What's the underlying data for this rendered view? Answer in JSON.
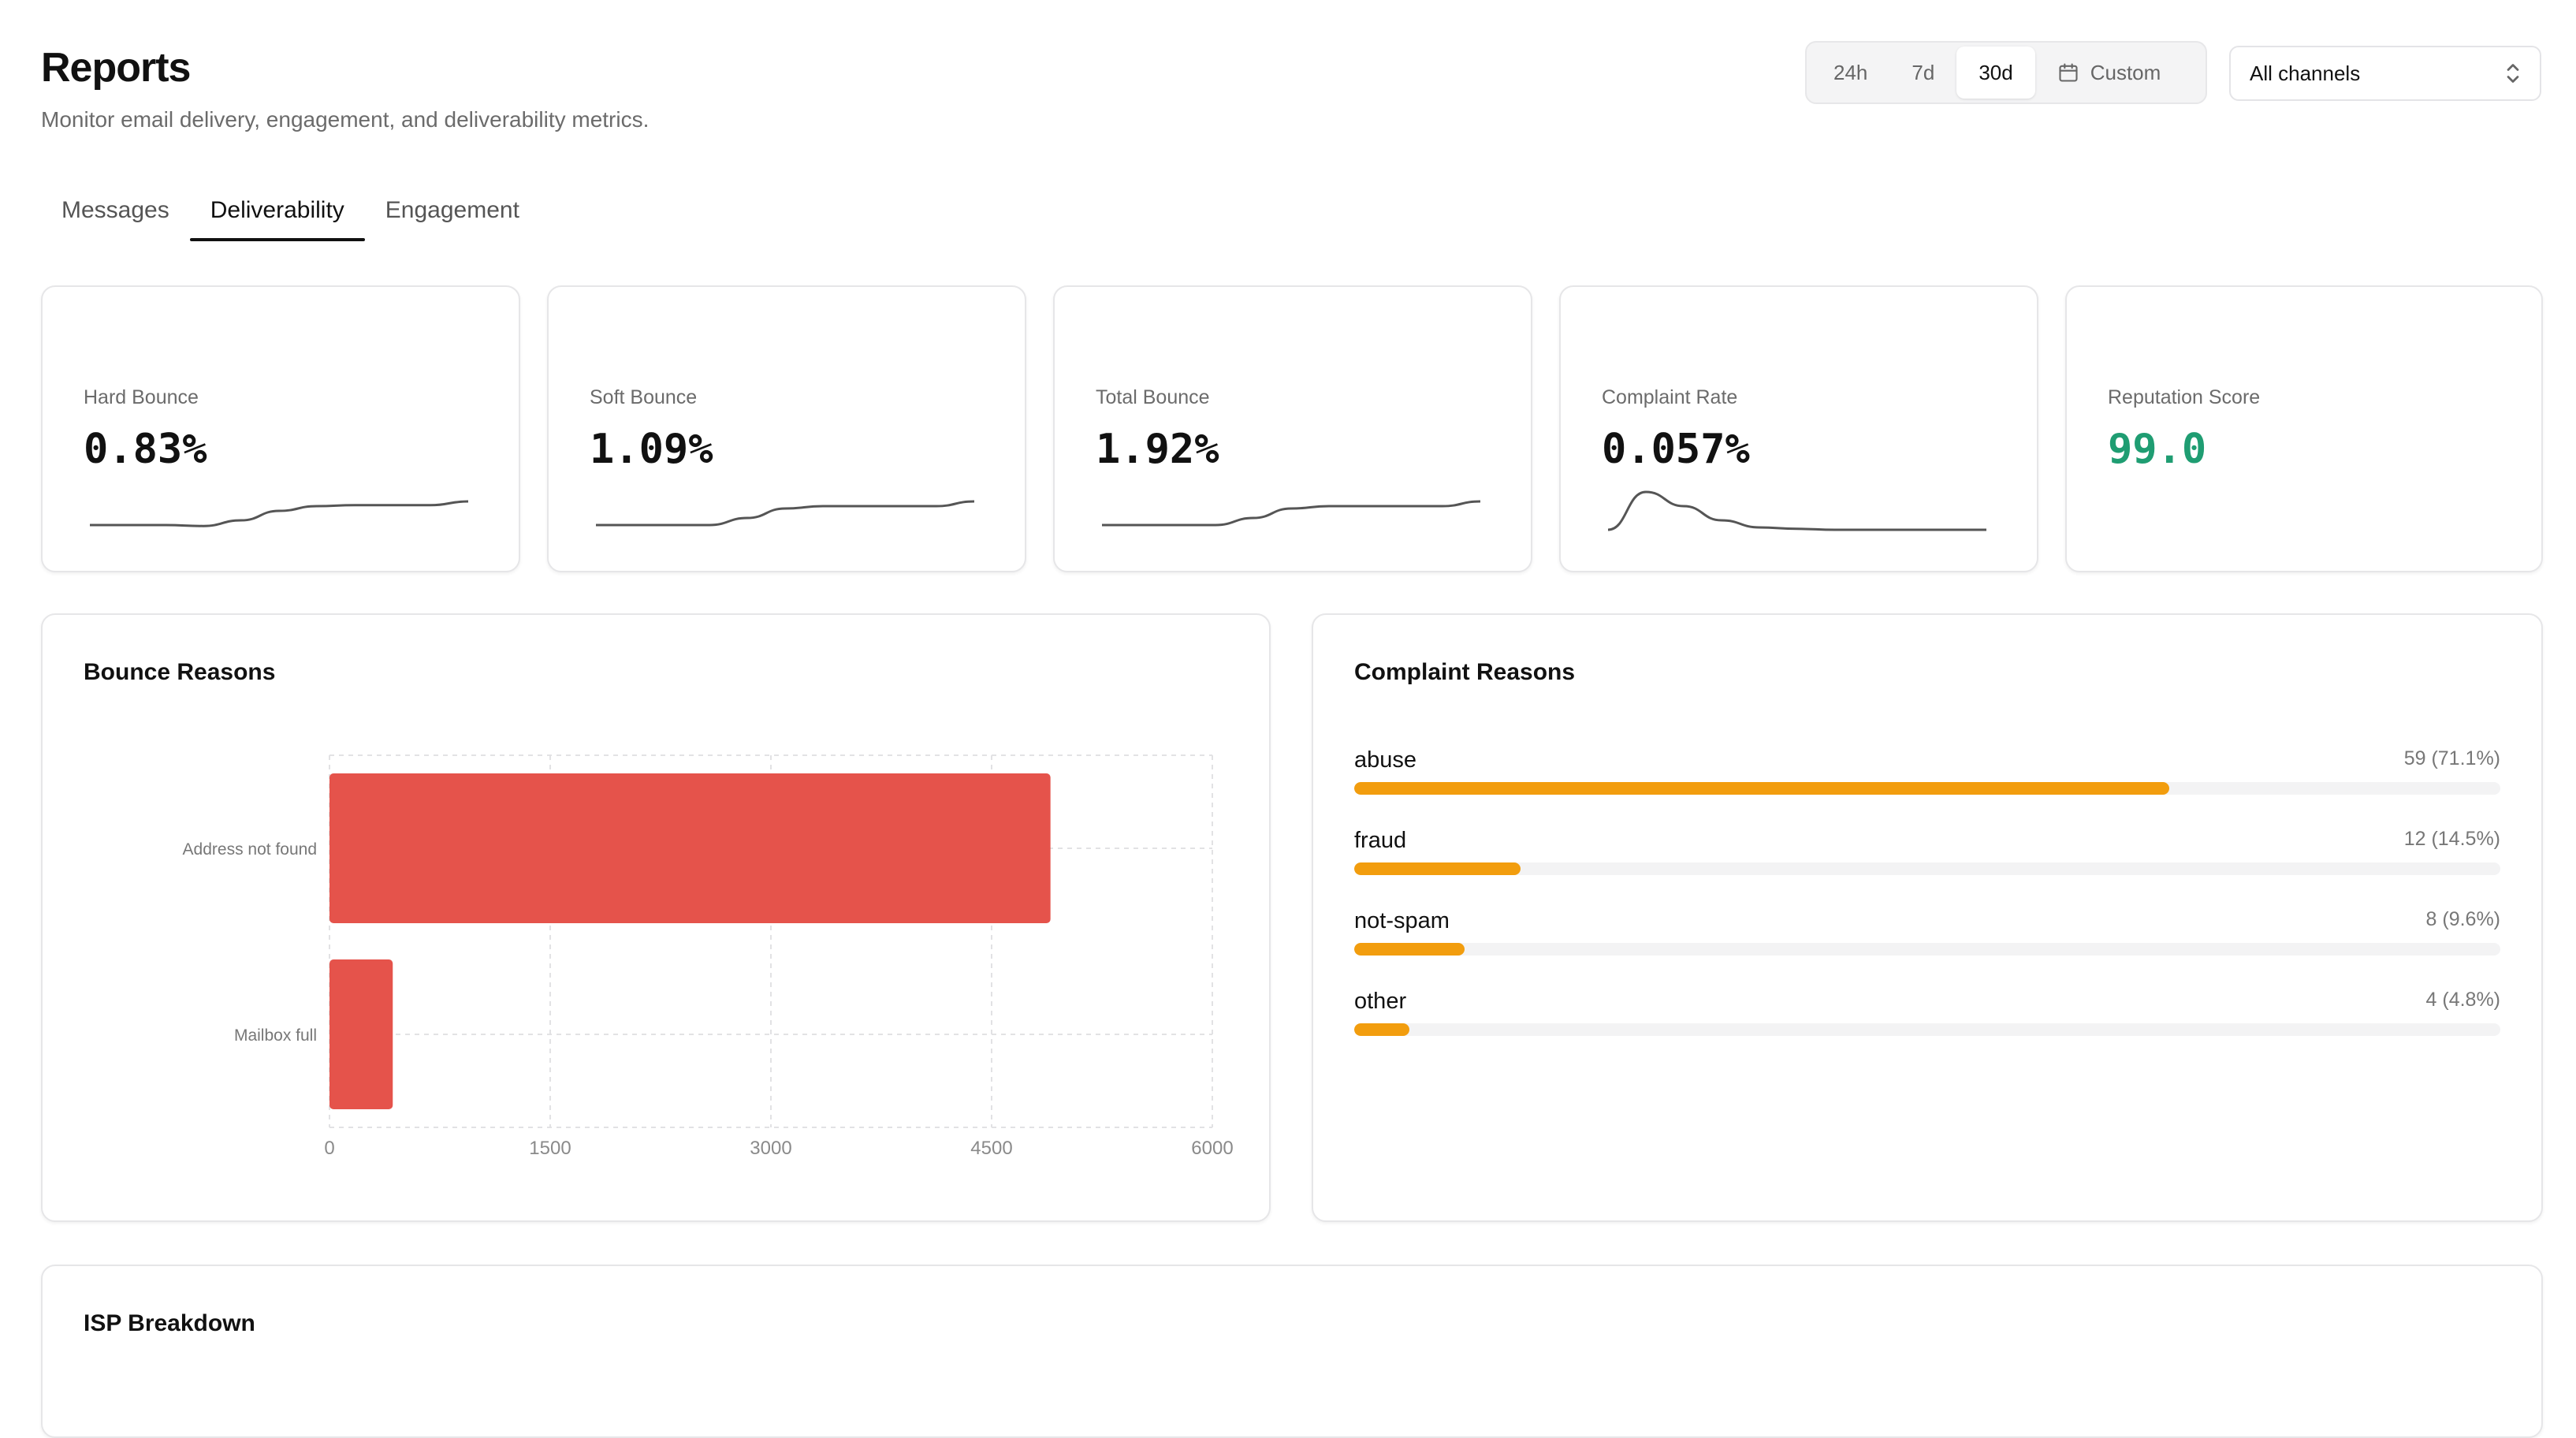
{
  "header": {
    "title": "Reports",
    "subtitle": "Monitor email delivery, engagement, and deliverability metrics."
  },
  "time_range": {
    "options": [
      "24h",
      "7d",
      "30d",
      "Custom"
    ],
    "selected": "30d",
    "custom_icon": "calendar-icon"
  },
  "channel_select": {
    "value": "All channels",
    "icon": "chevron-up-down-icon"
  },
  "tabs": [
    {
      "label": "Messages"
    },
    {
      "label": "Deliverability"
    },
    {
      "label": "Engagement"
    }
  ],
  "active_tab": "Deliverability",
  "stats": [
    {
      "label": "Hard Bounce",
      "value": "0.83%",
      "trend": [
        0.3,
        0.3,
        0.3,
        0.28,
        0.4,
        0.6,
        0.7,
        0.72,
        0.72,
        0.72,
        0.8
      ]
    },
    {
      "label": "Soft Bounce",
      "value": "1.09%",
      "trend": [
        0.3,
        0.3,
        0.3,
        0.3,
        0.45,
        0.65,
        0.7,
        0.7,
        0.7,
        0.7,
        0.8
      ]
    },
    {
      "label": "Total Bounce",
      "value": "1.92%",
      "trend": [
        0.3,
        0.3,
        0.3,
        0.3,
        0.45,
        0.65,
        0.7,
        0.7,
        0.7,
        0.7,
        0.8
      ]
    },
    {
      "label": "Complaint Rate",
      "value": "0.057%",
      "trend": [
        0.2,
        1.0,
        0.7,
        0.4,
        0.25,
        0.22,
        0.2,
        0.2,
        0.2,
        0.2,
        0.2
      ]
    },
    {
      "label": "Reputation Score",
      "value": "99.0",
      "trend": []
    }
  ],
  "colors": {
    "reputation": "#1f9d72",
    "bounce_bar": "#e5534b",
    "complaint_bar": "#f29d0e",
    "sparkline": "#555555"
  },
  "bounce_reasons": {
    "title": "Bounce Reasons",
    "chart_data": {
      "type": "bar",
      "orientation": "horizontal",
      "categories": [
        "Address not found",
        "Mailbox full"
      ],
      "values": [
        4900,
        430
      ],
      "xlim": [
        0,
        6000
      ],
      "xticks": [
        "0",
        "1500",
        "3000",
        "4500",
        "6000"
      ],
      "grid": true
    }
  },
  "complaint_reasons": {
    "title": "Complaint Reasons",
    "items": [
      {
        "label": "abuse",
        "count": "59 (71.1%)",
        "pct": 71.1
      },
      {
        "label": "fraud",
        "count": "12 (14.5%)",
        "pct": 14.5
      },
      {
        "label": "not-spam",
        "count": "8 (9.6%)",
        "pct": 9.6
      },
      {
        "label": "other",
        "count": "4 (4.8%)",
        "pct": 4.8
      }
    ]
  },
  "isp_breakdown": {
    "title": "ISP Breakdown"
  }
}
